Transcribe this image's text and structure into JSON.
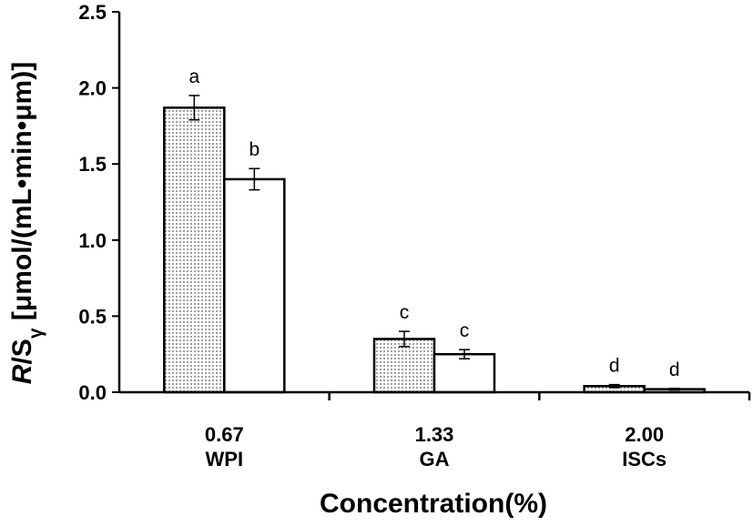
{
  "chart_data": {
    "type": "bar",
    "categories": [
      {
        "value": "0.67",
        "material": "WPI"
      },
      {
        "value": "1.33",
        "material": "GA"
      },
      {
        "value": "2.00",
        "material": "ISCs"
      }
    ],
    "series": [
      {
        "pattern": "dotted",
        "values": [
          1.87,
          0.35,
          0.04
        ],
        "errors": [
          0.08,
          0.05,
          0.01
        ],
        "labels": [
          "a",
          "c",
          "d"
        ]
      },
      {
        "pattern": "white",
        "values": [
          1.4,
          0.25,
          0.02
        ],
        "errors": [
          0.07,
          0.03,
          0.005
        ],
        "labels": [
          "b",
          "c",
          "d"
        ]
      }
    ],
    "ylim": [
      0,
      2.5
    ],
    "yticks": [
      "0.0",
      "0.5",
      "1.0",
      "1.5",
      "2.0",
      "2.5"
    ],
    "ylabel_italic": "R",
    "ylabel_rest": "/S",
    "ylabel_sub": "γ",
    "ylabel_units": " [μmol/(mL•min•μm)]",
    "xlabel": "Concentration(%)",
    "grid": false,
    "legend": "none",
    "colors": {
      "bar_edge": "#000000",
      "bar_fill": "#ffffff",
      "dot": "#555555"
    }
  }
}
